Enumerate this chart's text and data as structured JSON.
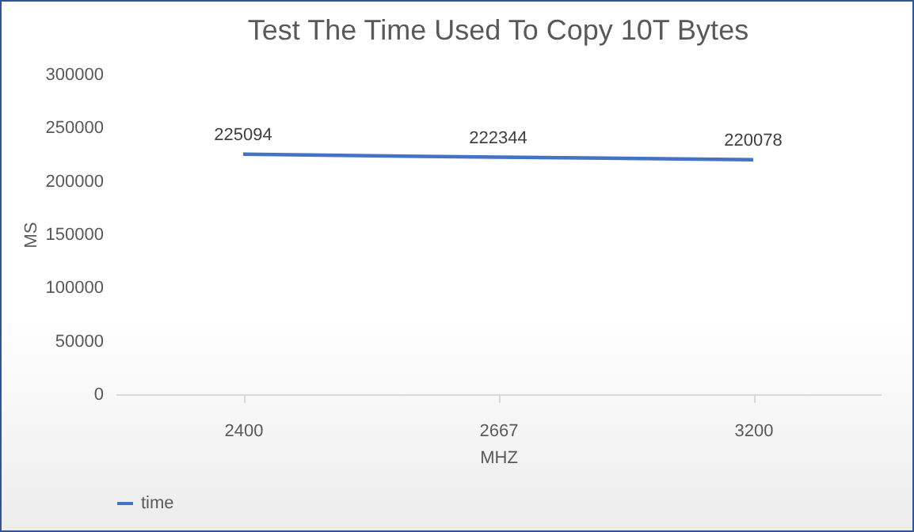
{
  "chart_data": {
    "type": "line",
    "title": "Test The Time Used To Copy 10T Bytes",
    "xlabel": "MHZ",
    "ylabel": "MS",
    "categories": [
      "2400",
      "2667",
      "3200"
    ],
    "series": [
      {
        "name": "time",
        "color": "#4472c4",
        "values": [
          225094,
          222344,
          220078
        ]
      }
    ],
    "ylim": [
      0,
      300000
    ],
    "yticks": [
      0,
      50000,
      100000,
      150000,
      200000,
      250000,
      300000
    ],
    "data_labels": true,
    "legend": "bottom",
    "grid": false,
    "marker": "none",
    "line_style": "solid"
  }
}
